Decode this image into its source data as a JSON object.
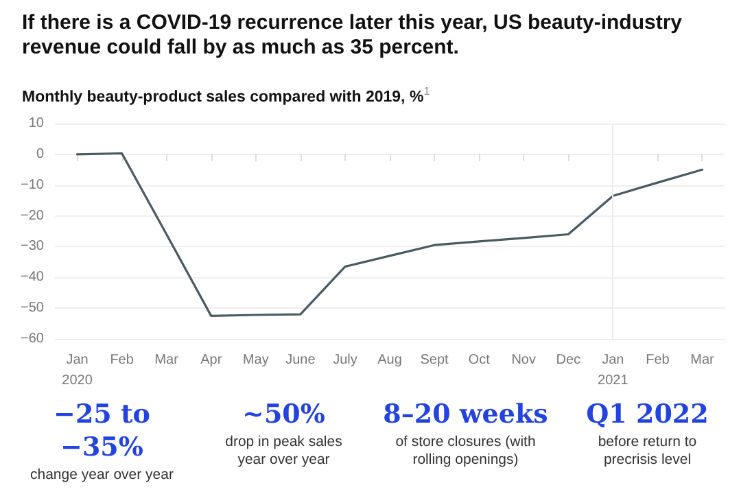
{
  "chart_data": {
    "type": "line",
    "title": "If there is a COVID-19 recurrence later this year, US beauty-industry revenue could fall by as much as 35 percent.",
    "subtitle": "Monthly beauty-product sales compared with 2019, %$^{1}$",
    "categories": [
      "Jan\n2020",
      "Feb",
      "Mar",
      "Apr",
      "May",
      "June",
      "July",
      "Aug",
      "Sept",
      "Oct",
      "Nov",
      "Dec",
      "Jan\n2021",
      "Feb",
      "Mar"
    ],
    "series": [
      {
        "color": "#4a5a63",
        "values": [
          0,
          0.3,
          -26,
          -52.5,
          -52.2,
          -52,
          -36.5,
          -33,
          -29.5,
          -28.3,
          -27.2,
          -26,
          -13.5,
          -9.2,
          -5
        ]
      }
    ],
    "ylim": [
      -60,
      10
    ],
    "yticks": [
      -60,
      -50,
      -40,
      -30,
      -20,
      -10,
      0,
      10
    ],
    "grid": "y",
    "marker": "none",
    "line_style": "solid",
    "ref_lines": [
      {
        "axis": "x",
        "value": "Jan\n2021",
        "color": "#ececec"
      }
    ],
    "annotations": [
      "−25 to −35%",
      "change year over year",
      "~50%",
      "drop in peak sales year over year",
      "8–20 weeks",
      "of store closures (with rolling openings)",
      "Q1 2022",
      "before return to precrisis level"
    ]
  }
}
